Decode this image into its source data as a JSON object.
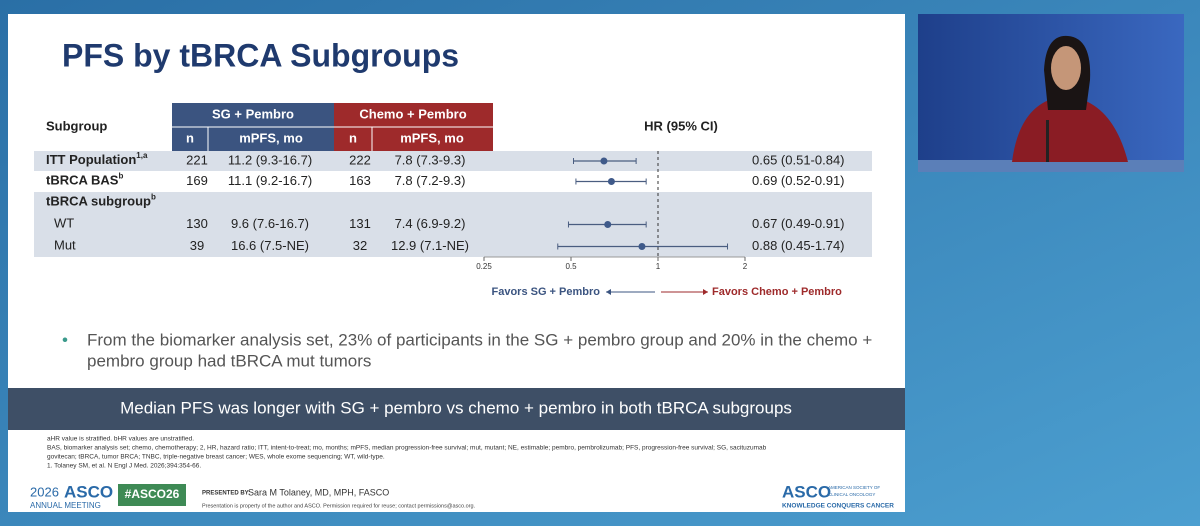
{
  "title": "PFS by tBRCA Subgroups",
  "table": {
    "subgroup_header": "Subgroup",
    "groups": [
      "SG + Pembro",
      "Chemo + Pembro"
    ],
    "subheaders": [
      "n",
      "mPFS, mo",
      "n",
      "mPFS, mo"
    ],
    "hr_header": "HR (95% CI)",
    "rows": [
      {
        "label": "ITT Population",
        "sup": "1,a",
        "cells": [
          221,
          "11.2 (9.3-16.7)",
          222,
          "7.8 (7.3-9.3)"
        ],
        "hr": 0.65,
        "ci": [
          0.51,
          0.84
        ],
        "hr_label": "0.65 (0.51-0.84)"
      },
      {
        "label": "tBRCA BAS",
        "sup": "b",
        "cells": [
          169,
          "11.1 (9.2-16.7)",
          163,
          "7.8 (7.2-9.3)"
        ],
        "hr": 0.69,
        "ci": [
          0.52,
          0.91
        ],
        "hr_label": "0.69 (0.52-0.91)"
      },
      {
        "label": "tBRCA subgroup",
        "sup": "b"
      },
      {
        "label": "WT",
        "cells": [
          130,
          "9.6 (7.6-16.7)",
          131,
          "7.4 (6.9-9.2)"
        ],
        "hr": 0.67,
        "ci": [
          0.49,
          0.91
        ],
        "hr_label": "0.67 (0.49-0.91)"
      },
      {
        "label": "Mut",
        "cells": [
          39,
          "16.6 (7.5-NE)",
          32,
          "12.9 (7.1-NE)"
        ],
        "hr": 0.88,
        "ci": [
          0.45,
          1.74
        ],
        "hr_label": "0.88 (0.45-1.74)"
      }
    ]
  },
  "forest": {
    "xlim": [
      0.25,
      2
    ],
    "xticks": [
      0.25,
      0.5,
      1,
      2
    ],
    "reference": 1,
    "log_scale": true,
    "favors_left": "Favors SG + Pembro",
    "favors_right": "Favors Chemo + Pembro"
  },
  "bullet": [
    "From the biomarker analysis set, 23% of participants in the SG + pembro group and 20% in the chemo +",
    "pembro group had tBRCA mut tumors"
  ],
  "banner": "Median PFS was longer with SG + pembro vs chemo + pembro in both tBRCA subgroups",
  "footnotes": [
    "aHR value is stratified. bHR values are unstratified.",
    "BAS, biomarker analysis set; chemo, chemotherapy; 2, HR, hazard ratio; ITT, intent-to-treat; mo, months; mPFS, median progression-free survival; mut, mutant; NE, estimable; pembro, pembrolizumab; PFS, progression-free survival; SG, sacituzumab",
    "govitecan; tBRCA, tumor BRCA; TNBC, triple-negative breast cancer; WES, whole exome sequencing; WT, wild-type.",
    "1. Tolaney SM, et al. N Engl J Med. 2026;394:354-66."
  ],
  "footer": {
    "year": "2026",
    "brand": "ASCO",
    "meeting": "ANNUAL MEETING",
    "hashtag": "#ASCO26",
    "presented_by": "PRESENTED BY:",
    "presenter": "Sara M Tolaney, MD, MPH, FASCO",
    "permission": "Presentation is property of the author and ASCO. Permission required for reuse; contact permissions@asco.org.",
    "logo": "ASCO",
    "society": [
      "AMERICAN SOCIETY OF",
      "CLINICAL ONCOLOGY"
    ],
    "tagline": "KNOWLEDGE CONQUERS CANCER"
  }
}
